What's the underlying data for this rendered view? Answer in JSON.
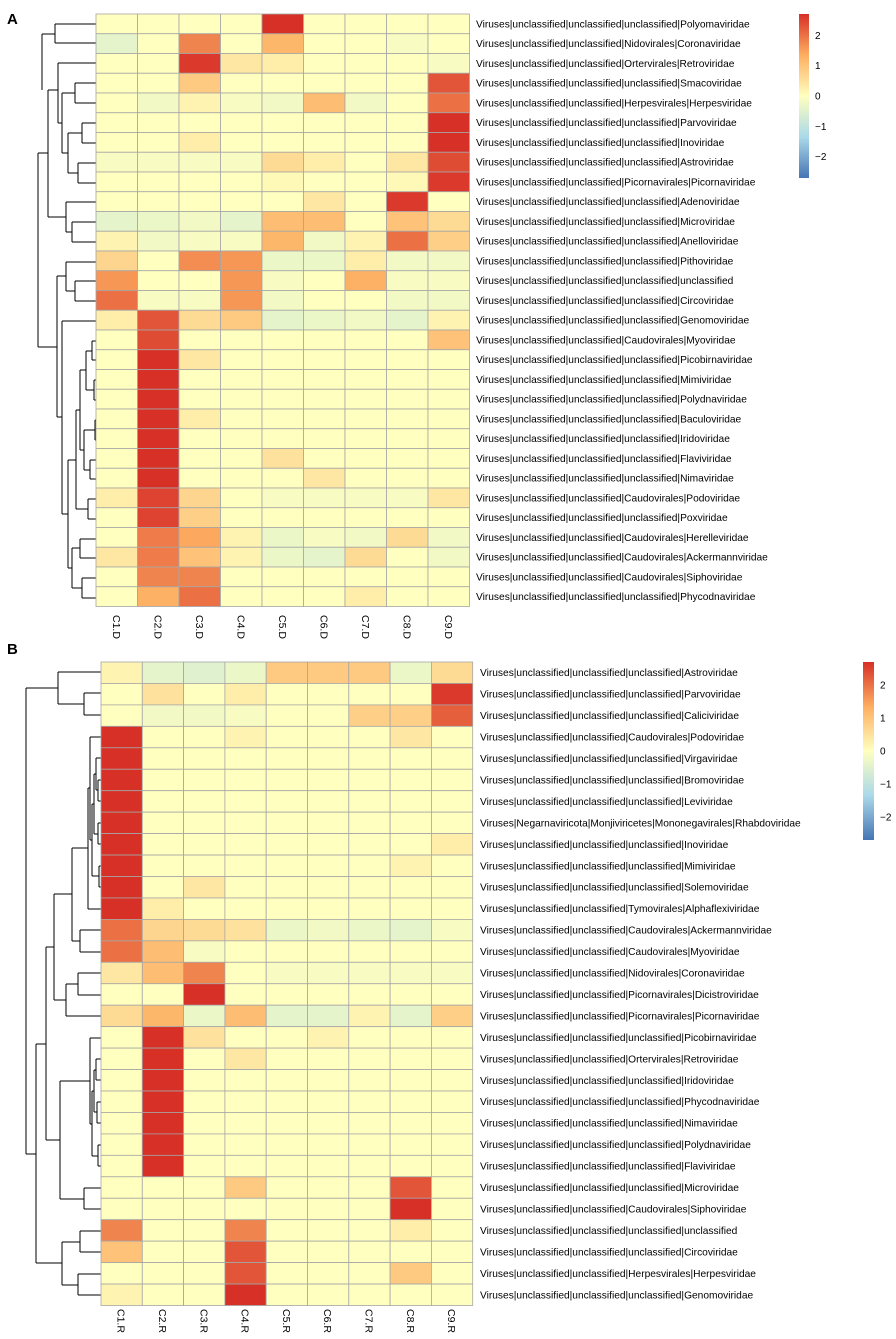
{
  "panels": [
    {
      "letter": "A",
      "columns": [
        "C1.D",
        "C2.D",
        "C3.D",
        "C4.D",
        "C5.D",
        "C6.D",
        "C7.D",
        "C8.D",
        "C9.D"
      ],
      "rows": [
        "Viruses|unclassified|unclassified|unclassified|Polyomaviridae",
        "Viruses|unclassified|unclassified|Nidovirales|Coronaviridae",
        "Viruses|unclassified|unclassified|Ortervirales|Retroviridae",
        "Viruses|unclassified|unclassified|unclassified|Smacoviridae",
        "Viruses|unclassified|unclassified|Herpesvirales|Herpesviridae",
        "Viruses|unclassified|unclassified|unclassified|Parvoviridae",
        "Viruses|unclassified|unclassified|unclassified|Inoviridae",
        "Viruses|unclassified|unclassified|unclassified|Astroviridae",
        "Viruses|unclassified|unclassified|Picornavirales|Picornaviridae",
        "Viruses|unclassified|unclassified|unclassified|Adenoviridae",
        "Viruses|unclassified|unclassified|unclassified|Microviridae",
        "Viruses|unclassified|unclassified|unclassified|Anelloviridae",
        "Viruses|unclassified|unclassified|unclassified|Pithoviridae",
        "Viruses|unclassified|unclassified|unclassified|unclassified",
        "Viruses|unclassified|unclassified|unclassified|Circoviridae",
        "Viruses|unclassified|unclassified|unclassified|Genomoviridae",
        "Viruses|unclassified|unclassified|Caudovirales|Myoviridae",
        "Viruses|unclassified|unclassified|unclassified|Picobirnaviridae",
        "Viruses|unclassified|unclassified|unclassified|Mimiviridae",
        "Viruses|unclassified|unclassified|unclassified|Polydnaviridae",
        "Viruses|unclassified|unclassified|unclassified|Baculoviridae",
        "Viruses|unclassified|unclassified|unclassified|Iridoviridae",
        "Viruses|unclassified|unclassified|unclassified|Flaviviridae",
        "Viruses|unclassified|unclassified|unclassified|Nimaviridae",
        "Viruses|unclassified|unclassified|Caudovirales|Podoviridae",
        "Viruses|unclassified|unclassified|unclassified|Poxviridae",
        "Viruses|unclassified|unclassified|Caudovirales|Herelleviridae",
        "Viruses|unclassified|unclassified|Caudovirales|Ackermannviridae",
        "Viruses|unclassified|unclassified|Caudovirales|Siphoviridae",
        "Viruses|unclassified|unclassified|unclassified|Phycodnaviridae"
      ],
      "legend_ticks": [
        2,
        1,
        0,
        -1,
        -2
      ]
    },
    {
      "letter": "B",
      "columns": [
        "C1.R",
        "C2.R",
        "C3.R",
        "C4.R",
        "C5.R",
        "C6.R",
        "C7.R",
        "C8.R",
        "C9.R"
      ],
      "rows": [
        "Viruses|unclassified|unclassified|unclassified|Astroviridae",
        "Viruses|unclassified|unclassified|unclassified|Parvoviridae",
        "Viruses|unclassified|unclassified|unclassified|Caliciviridae",
        "Viruses|unclassified|unclassified|Caudovirales|Podoviridae",
        "Viruses|unclassified|unclassified|unclassified|Virgaviridae",
        "Viruses|unclassified|unclassified|unclassified|Bromoviridae",
        "Viruses|unclassified|unclassified|unclassified|Leviviridae",
        "Viruses|Negarnaviricota|Monjiviricetes|Mononegavirales|Rhabdoviridae",
        "Viruses|unclassified|unclassified|unclassified|Inoviridae",
        "Viruses|unclassified|unclassified|unclassified|Mimiviridae",
        "Viruses|unclassified|unclassified|unclassified|Solemoviridae",
        "Viruses|unclassified|unclassified|Tymovirales|Alphaflexiviridae",
        "Viruses|unclassified|unclassified|Caudovirales|Ackermannviridae",
        "Viruses|unclassified|unclassified|Caudovirales|Myoviridae",
        "Viruses|unclassified|unclassified|Nidovirales|Coronaviridae",
        "Viruses|unclassified|unclassified|Picornavirales|Dicistroviridae",
        "Viruses|unclassified|unclassified|Picornavirales|Picornaviridae",
        "Viruses|unclassified|unclassified|unclassified|Picobirnaviridae",
        "Viruses|unclassified|unclassified|Ortervirales|Retroviridae",
        "Viruses|unclassified|unclassified|unclassified|Iridoviridae",
        "Viruses|unclassified|unclassified|unclassified|Phycodnaviridae",
        "Viruses|unclassified|unclassified|unclassified|Nimaviridae",
        "Viruses|unclassified|unclassified|unclassified|Polydnaviridae",
        "Viruses|unclassified|unclassified|unclassified|Flaviviridae",
        "Viruses|unclassified|unclassified|unclassified|Microviridae",
        "Viruses|unclassified|unclassified|Caudovirales|Siphoviridae",
        "Viruses|unclassified|unclassified|unclassified|unclassified",
        "Viruses|unclassified|unclassified|unclassified|Circoviridae",
        "Viruses|unclassified|unclassified|Herpesvirales|Herpesviridae",
        "Viruses|unclassified|unclassified|unclassified|Genomoviridae"
      ],
      "legend_ticks": [
        2,
        1,
        0,
        -1,
        -2
      ]
    }
  ],
  "colors": {
    "high": "#d73027",
    "mid_high": "#fdae61",
    "neutral": "#ffffbf",
    "mid_low": "#abd9e9",
    "low": "#4575b4",
    "grid": "#a6a6a6"
  },
  "chart_data": [
    {
      "type": "heatmap",
      "title": "A",
      "xlabel": "",
      "ylabel": "",
      "value_range": [
        -2.7,
        2.7
      ],
      "x": [
        "C1.D",
        "C2.D",
        "C3.D",
        "C4.D",
        "C5.D",
        "C6.D",
        "C7.D",
        "C8.D",
        "C9.D"
      ],
      "y": [
        "Viruses|unclassified|unclassified|unclassified|Polyomaviridae",
        "Viruses|unclassified|unclassified|Nidovirales|Coronaviridae",
        "Viruses|unclassified|unclassified|Ortervirales|Retroviridae",
        "Viruses|unclassified|unclassified|unclassified|Smacoviridae",
        "Viruses|unclassified|unclassified|Herpesvirales|Herpesviridae",
        "Viruses|unclassified|unclassified|unclassified|Parvoviridae",
        "Viruses|unclassified|unclassified|unclassified|Inoviridae",
        "Viruses|unclassified|unclassified|unclassified|Astroviridae",
        "Viruses|unclassified|unclassified|Picornavirales|Picornaviridae",
        "Viruses|unclassified|unclassified|unclassified|Adenoviridae",
        "Viruses|unclassified|unclassified|unclassified|Microviridae",
        "Viruses|unclassified|unclassified|unclassified|Anelloviridae",
        "Viruses|unclassified|unclassified|unclassified|Pithoviridae",
        "Viruses|unclassified|unclassified|unclassified|unclassified",
        "Viruses|unclassified|unclassified|unclassified|Circoviridae",
        "Viruses|unclassified|unclassified|unclassified|Genomoviridae",
        "Viruses|unclassified|unclassified|Caudovirales|Myoviridae",
        "Viruses|unclassified|unclassified|unclassified|Picobirnaviridae",
        "Viruses|unclassified|unclassified|unclassified|Mimiviridae",
        "Viruses|unclassified|unclassified|unclassified|Polydnaviridae",
        "Viruses|unclassified|unclassified|unclassified|Baculoviridae",
        "Viruses|unclassified|unclassified|unclassified|Iridoviridae",
        "Viruses|unclassified|unclassified|unclassified|Flaviviridae",
        "Viruses|unclassified|unclassified|unclassified|Nimaviridae",
        "Viruses|unclassified|unclassified|Caudovirales|Podoviridae",
        "Viruses|unclassified|unclassified|unclassified|Poxviridae",
        "Viruses|unclassified|unclassified|Caudovirales|Herelleviridae",
        "Viruses|unclassified|unclassified|Caudovirales|Ackermannviridae",
        "Viruses|unclassified|unclassified|Caudovirales|Siphoviridae",
        "Viruses|unclassified|unclassified|unclassified|Phycodnaviridae"
      ],
      "values": [
        [
          0,
          0,
          0,
          0,
          2.7,
          0,
          0,
          0,
          0
        ],
        [
          -0.4,
          0,
          1.8,
          0,
          1.2,
          0,
          0,
          -0.1,
          0
        ],
        [
          0,
          0,
          2.6,
          0.4,
          0.3,
          0,
          0,
          0,
          -0.1
        ],
        [
          0,
          0,
          0.9,
          0,
          0,
          0,
          0,
          0,
          2.3
        ],
        [
          0,
          -0.2,
          0.2,
          -0.1,
          -0.2,
          1.1,
          -0.2,
          0,
          2
        ],
        [
          0,
          0,
          0,
          0,
          0,
          0,
          0,
          0,
          2.7
        ],
        [
          0,
          0,
          0.3,
          0,
          0,
          0,
          0,
          0,
          2.7
        ],
        [
          -0.1,
          -0.1,
          -0.1,
          -0.1,
          0.6,
          0.3,
          0,
          0.4,
          2.4
        ],
        [
          0,
          0,
          0,
          0,
          0.1,
          0,
          0,
          0.1,
          2.6
        ],
        [
          0,
          0,
          0,
          0,
          0,
          0.4,
          0,
          2.6,
          0
        ],
        [
          -0.4,
          -0.3,
          -0.2,
          -0.4,
          1.1,
          1.1,
          0,
          1,
          0.6
        ],
        [
          0.2,
          -0.2,
          -0.1,
          -0.1,
          1.2,
          -0.2,
          0.2,
          2,
          0.8
        ],
        [
          0.7,
          0,
          1.7,
          1.6,
          -0.3,
          -0.3,
          0.3,
          -0.2,
          -0.2
        ],
        [
          1.6,
          0,
          0,
          1.6,
          -0.1,
          0,
          1.3,
          -0.1,
          -0.1
        ],
        [
          2,
          -0.1,
          -0.1,
          1.6,
          -0.2,
          0,
          0,
          -0.2,
          -0.2
        ],
        [
          0.3,
          2.3,
          0.6,
          0.9,
          -0.4,
          -0.3,
          -0.2,
          -0.4,
          0.2
        ],
        [
          0,
          2.4,
          0,
          0,
          0,
          0,
          0,
          0,
          1
        ],
        [
          0,
          2.7,
          0.4,
          0,
          0,
          0,
          0,
          0,
          0
        ],
        [
          0,
          2.7,
          0,
          0,
          0,
          0,
          0,
          0,
          0
        ],
        [
          0,
          2.7,
          0,
          0,
          0,
          0,
          0,
          0,
          0
        ],
        [
          0,
          2.7,
          0.3,
          0,
          0,
          0,
          0,
          0,
          0
        ],
        [
          0,
          2.7,
          0,
          0,
          0,
          0,
          0,
          0,
          0
        ],
        [
          0,
          2.7,
          0,
          0,
          0.5,
          0,
          0,
          0,
          0
        ],
        [
          0,
          2.7,
          0,
          0,
          0,
          0.4,
          0,
          0,
          0
        ],
        [
          0.3,
          2.5,
          0.7,
          0,
          -0.1,
          -0.1,
          -0.1,
          -0.1,
          0.4
        ],
        [
          0,
          2.5,
          0.8,
          0,
          0,
          0,
          0,
          0,
          0
        ],
        [
          0,
          1.9,
          1.4,
          0.2,
          -0.3,
          -0.1,
          -0.2,
          0.6,
          -0.2
        ],
        [
          0.4,
          1.9,
          1,
          0.2,
          -0.3,
          -0.4,
          0.6,
          0,
          -0.2
        ],
        [
          0,
          1.8,
          1.8,
          0,
          0,
          0,
          0,
          0,
          0
        ],
        [
          0,
          1.3,
          2,
          0,
          0,
          0,
          0.3,
          0,
          0
        ]
      ]
    },
    {
      "type": "heatmap",
      "title": "B",
      "xlabel": "",
      "ylabel": "",
      "value_range": [
        -2.7,
        2.7
      ],
      "x": [
        "C1.R",
        "C2.R",
        "C3.R",
        "C4.R",
        "C5.R",
        "C6.R",
        "C7.R",
        "C8.R",
        "C9.R"
      ],
      "y": [
        "Viruses|unclassified|unclassified|unclassified|Astroviridae",
        "Viruses|unclassified|unclassified|unclassified|Parvoviridae",
        "Viruses|unclassified|unclassified|unclassified|Caliciviridae",
        "Viruses|unclassified|unclassified|Caudovirales|Podoviridae",
        "Viruses|unclassified|unclassified|unclassified|Virgaviridae",
        "Viruses|unclassified|unclassified|unclassified|Bromoviridae",
        "Viruses|unclassified|unclassified|unclassified|Leviviridae",
        "Viruses|Negarnaviricota|Monjiviricetes|Mononegavirales|Rhabdoviridae",
        "Viruses|unclassified|unclassified|unclassified|Inoviridae",
        "Viruses|unclassified|unclassified|unclassified|Mimiviridae",
        "Viruses|unclassified|unclassified|unclassified|Solemoviridae",
        "Viruses|unclassified|unclassified|Tymovirales|Alphaflexiviridae",
        "Viruses|unclassified|unclassified|Caudovirales|Ackermannviridae",
        "Viruses|unclassified|unclassified|Caudovirales|Myoviridae",
        "Viruses|unclassified|unclassified|Nidovirales|Coronaviridae",
        "Viruses|unclassified|unclassified|Picornavirales|Dicistroviridae",
        "Viruses|unclassified|unclassified|Picornavirales|Picornaviridae",
        "Viruses|unclassified|unclassified|unclassified|Picobirnaviridae",
        "Viruses|unclassified|unclassified|Ortervirales|Retroviridae",
        "Viruses|unclassified|unclassified|unclassified|Iridoviridae",
        "Viruses|unclassified|unclassified|unclassified|Phycodnaviridae",
        "Viruses|unclassified|unclassified|unclassified|Nimaviridae",
        "Viruses|unclassified|unclassified|unclassified|Polydnaviridae",
        "Viruses|unclassified|unclassified|unclassified|Flaviviridae",
        "Viruses|unclassified|unclassified|unclassified|Microviridae",
        "Viruses|unclassified|unclassified|Caudovirales|Siphoviridae",
        "Viruses|unclassified|unclassified|unclassified|unclassified",
        "Viruses|unclassified|unclassified|unclassified|Circoviridae",
        "Viruses|unclassified|unclassified|Herpesvirales|Herpesviridae",
        "Viruses|unclassified|unclassified|unclassified|Genomoviridae"
      ],
      "values": [
        [
          0.2,
          -0.4,
          -0.5,
          -0.3,
          0.9,
          0.9,
          0.9,
          -0.3,
          0.6
        ],
        [
          0,
          0.5,
          0,
          0.3,
          0,
          0,
          0,
          0,
          2.6
        ],
        [
          0,
          -0.2,
          -0.2,
          -0.1,
          0,
          0,
          0.8,
          0.8,
          2.2
        ],
        [
          2.7,
          0,
          0,
          0.2,
          0,
          0,
          0,
          0.4,
          0
        ],
        [
          2.7,
          0,
          0,
          0,
          0,
          0,
          0,
          0,
          0
        ],
        [
          2.7,
          0,
          0,
          0,
          0,
          0,
          0,
          0,
          0
        ],
        [
          2.7,
          0,
          0,
          0,
          0,
          0,
          0,
          0,
          0
        ],
        [
          2.7,
          0,
          0,
          0,
          0,
          0,
          0,
          0,
          0
        ],
        [
          2.7,
          0,
          0,
          0,
          0,
          0,
          0,
          0,
          0.3
        ],
        [
          2.7,
          0,
          0,
          0,
          0,
          0,
          0,
          0.2,
          0
        ],
        [
          2.7,
          0,
          0.4,
          0,
          0,
          0,
          0,
          0,
          0
        ],
        [
          2.7,
          0.3,
          0,
          0,
          0,
          0,
          0,
          0,
          0
        ],
        [
          2,
          0.7,
          0.6,
          0.5,
          -0.3,
          -0.2,
          -0.3,
          -0.4,
          -0.1
        ],
        [
          2,
          1.1,
          -0.1,
          0,
          0,
          0,
          0,
          0,
          0
        ],
        [
          0.4,
          1.1,
          1.8,
          0,
          -0.1,
          -0.1,
          -0.1,
          -0.1,
          -0.1
        ],
        [
          0,
          0,
          2.7,
          0,
          0,
          0,
          0,
          0,
          0
        ],
        [
          0.6,
          1.2,
          -0.3,
          1.1,
          -0.4,
          -0.4,
          0.2,
          -0.4,
          0.8
        ],
        [
          0,
          2.7,
          0.5,
          0,
          0,
          0.2,
          0,
          0,
          0
        ],
        [
          0,
          2.7,
          0,
          0.4,
          0,
          0,
          0,
          0,
          0
        ],
        [
          0,
          2.7,
          0,
          0,
          0,
          0,
          0,
          0,
          0
        ],
        [
          0,
          2.7,
          0,
          0,
          0,
          0,
          0,
          0,
          0
        ],
        [
          0,
          2.7,
          0,
          0,
          0,
          0,
          0,
          0,
          0
        ],
        [
          0,
          2.7,
          0,
          0,
          0,
          0,
          0,
          0,
          0
        ],
        [
          0,
          2.7,
          0,
          0,
          0,
          0,
          0,
          0,
          0
        ],
        [
          0,
          0,
          0,
          0.9,
          0,
          0,
          0,
          2.3,
          0
        ],
        [
          0,
          0,
          0,
          0,
          0,
          0,
          0,
          2.7,
          0
        ],
        [
          1.8,
          0,
          0,
          1.8,
          0,
          0,
          0,
          0.3,
          0
        ],
        [
          1,
          0,
          0,
          2.3,
          0,
          0,
          0,
          0,
          0
        ],
        [
          0,
          0,
          0,
          2.3,
          0,
          0,
          0,
          0.9,
          0
        ],
        [
          0.2,
          0,
          0,
          2.7,
          0,
          0,
          0,
          0,
          0
        ]
      ]
    }
  ]
}
